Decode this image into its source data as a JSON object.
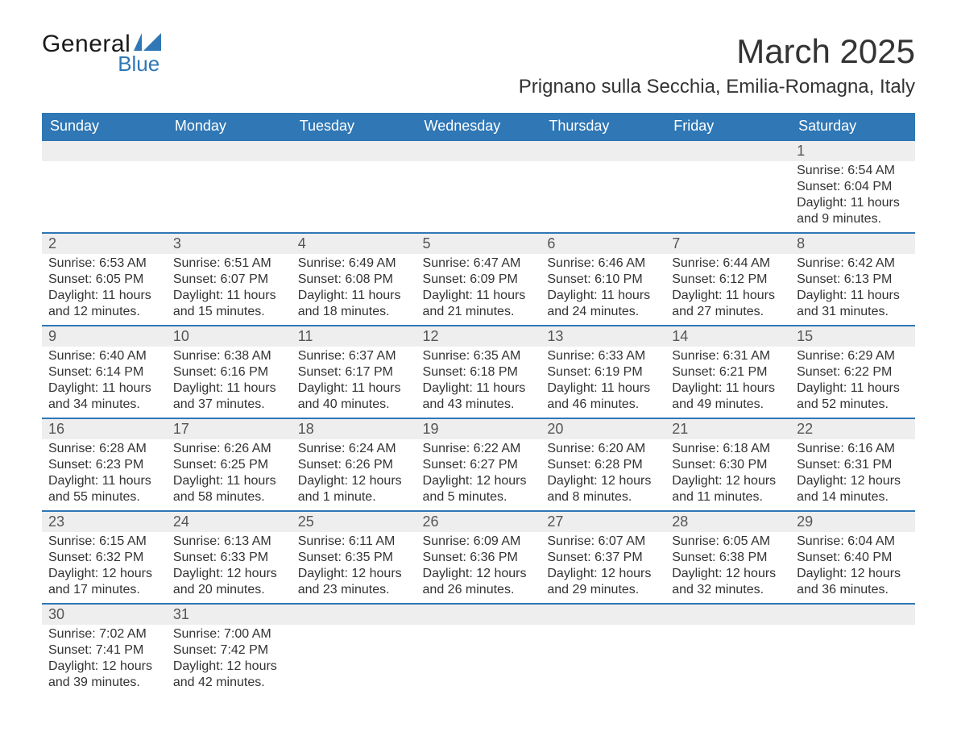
{
  "brand": {
    "word1": "General",
    "word2": "Blue"
  },
  "title": "March 2025",
  "location": "Prignano sulla Secchia, Emilia-Romagna, Italy",
  "colors": {
    "header_blue": "#2f77b5",
    "daynum_bg": "#eeeeee",
    "text": "#333333",
    "background": "#ffffff"
  },
  "typography": {
    "title_fontsize_pt": 32,
    "location_fontsize_pt": 18,
    "weekday_fontsize_pt": 14,
    "body_fontsize_pt": 12
  },
  "calendar": {
    "type": "table",
    "columns": [
      "Sunday",
      "Monday",
      "Tuesday",
      "Wednesday",
      "Thursday",
      "Friday",
      "Saturday"
    ],
    "weeks": [
      [
        null,
        null,
        null,
        null,
        null,
        null,
        {
          "n": "1",
          "sr": "Sunrise: 6:54 AM",
          "ss": "Sunset: 6:04 PM",
          "d1": "Daylight: 11 hours",
          "d2": "and 9 minutes."
        }
      ],
      [
        {
          "n": "2",
          "sr": "Sunrise: 6:53 AM",
          "ss": "Sunset: 6:05 PM",
          "d1": "Daylight: 11 hours",
          "d2": "and 12 minutes."
        },
        {
          "n": "3",
          "sr": "Sunrise: 6:51 AM",
          "ss": "Sunset: 6:07 PM",
          "d1": "Daylight: 11 hours",
          "d2": "and 15 minutes."
        },
        {
          "n": "4",
          "sr": "Sunrise: 6:49 AM",
          "ss": "Sunset: 6:08 PM",
          "d1": "Daylight: 11 hours",
          "d2": "and 18 minutes."
        },
        {
          "n": "5",
          "sr": "Sunrise: 6:47 AM",
          "ss": "Sunset: 6:09 PM",
          "d1": "Daylight: 11 hours",
          "d2": "and 21 minutes."
        },
        {
          "n": "6",
          "sr": "Sunrise: 6:46 AM",
          "ss": "Sunset: 6:10 PM",
          "d1": "Daylight: 11 hours",
          "d2": "and 24 minutes."
        },
        {
          "n": "7",
          "sr": "Sunrise: 6:44 AM",
          "ss": "Sunset: 6:12 PM",
          "d1": "Daylight: 11 hours",
          "d2": "and 27 minutes."
        },
        {
          "n": "8",
          "sr": "Sunrise: 6:42 AM",
          "ss": "Sunset: 6:13 PM",
          "d1": "Daylight: 11 hours",
          "d2": "and 31 minutes."
        }
      ],
      [
        {
          "n": "9",
          "sr": "Sunrise: 6:40 AM",
          "ss": "Sunset: 6:14 PM",
          "d1": "Daylight: 11 hours",
          "d2": "and 34 minutes."
        },
        {
          "n": "10",
          "sr": "Sunrise: 6:38 AM",
          "ss": "Sunset: 6:16 PM",
          "d1": "Daylight: 11 hours",
          "d2": "and 37 minutes."
        },
        {
          "n": "11",
          "sr": "Sunrise: 6:37 AM",
          "ss": "Sunset: 6:17 PM",
          "d1": "Daylight: 11 hours",
          "d2": "and 40 minutes."
        },
        {
          "n": "12",
          "sr": "Sunrise: 6:35 AM",
          "ss": "Sunset: 6:18 PM",
          "d1": "Daylight: 11 hours",
          "d2": "and 43 minutes."
        },
        {
          "n": "13",
          "sr": "Sunrise: 6:33 AM",
          "ss": "Sunset: 6:19 PM",
          "d1": "Daylight: 11 hours",
          "d2": "and 46 minutes."
        },
        {
          "n": "14",
          "sr": "Sunrise: 6:31 AM",
          "ss": "Sunset: 6:21 PM",
          "d1": "Daylight: 11 hours",
          "d2": "and 49 minutes."
        },
        {
          "n": "15",
          "sr": "Sunrise: 6:29 AM",
          "ss": "Sunset: 6:22 PM",
          "d1": "Daylight: 11 hours",
          "d2": "and 52 minutes."
        }
      ],
      [
        {
          "n": "16",
          "sr": "Sunrise: 6:28 AM",
          "ss": "Sunset: 6:23 PM",
          "d1": "Daylight: 11 hours",
          "d2": "and 55 minutes."
        },
        {
          "n": "17",
          "sr": "Sunrise: 6:26 AM",
          "ss": "Sunset: 6:25 PM",
          "d1": "Daylight: 11 hours",
          "d2": "and 58 minutes."
        },
        {
          "n": "18",
          "sr": "Sunrise: 6:24 AM",
          "ss": "Sunset: 6:26 PM",
          "d1": "Daylight: 12 hours",
          "d2": "and 1 minute."
        },
        {
          "n": "19",
          "sr": "Sunrise: 6:22 AM",
          "ss": "Sunset: 6:27 PM",
          "d1": "Daylight: 12 hours",
          "d2": "and 5 minutes."
        },
        {
          "n": "20",
          "sr": "Sunrise: 6:20 AM",
          "ss": "Sunset: 6:28 PM",
          "d1": "Daylight: 12 hours",
          "d2": "and 8 minutes."
        },
        {
          "n": "21",
          "sr": "Sunrise: 6:18 AM",
          "ss": "Sunset: 6:30 PM",
          "d1": "Daylight: 12 hours",
          "d2": "and 11 minutes."
        },
        {
          "n": "22",
          "sr": "Sunrise: 6:16 AM",
          "ss": "Sunset: 6:31 PM",
          "d1": "Daylight: 12 hours",
          "d2": "and 14 minutes."
        }
      ],
      [
        {
          "n": "23",
          "sr": "Sunrise: 6:15 AM",
          "ss": "Sunset: 6:32 PM",
          "d1": "Daylight: 12 hours",
          "d2": "and 17 minutes."
        },
        {
          "n": "24",
          "sr": "Sunrise: 6:13 AM",
          "ss": "Sunset: 6:33 PM",
          "d1": "Daylight: 12 hours",
          "d2": "and 20 minutes."
        },
        {
          "n": "25",
          "sr": "Sunrise: 6:11 AM",
          "ss": "Sunset: 6:35 PM",
          "d1": "Daylight: 12 hours",
          "d2": "and 23 minutes."
        },
        {
          "n": "26",
          "sr": "Sunrise: 6:09 AM",
          "ss": "Sunset: 6:36 PM",
          "d1": "Daylight: 12 hours",
          "d2": "and 26 minutes."
        },
        {
          "n": "27",
          "sr": "Sunrise: 6:07 AM",
          "ss": "Sunset: 6:37 PM",
          "d1": "Daylight: 12 hours",
          "d2": "and 29 minutes."
        },
        {
          "n": "28",
          "sr": "Sunrise: 6:05 AM",
          "ss": "Sunset: 6:38 PM",
          "d1": "Daylight: 12 hours",
          "d2": "and 32 minutes."
        },
        {
          "n": "29",
          "sr": "Sunrise: 6:04 AM",
          "ss": "Sunset: 6:40 PM",
          "d1": "Daylight: 12 hours",
          "d2": "and 36 minutes."
        }
      ],
      [
        {
          "n": "30",
          "sr": "Sunrise: 7:02 AM",
          "ss": "Sunset: 7:41 PM",
          "d1": "Daylight: 12 hours",
          "d2": "and 39 minutes."
        },
        {
          "n": "31",
          "sr": "Sunrise: 7:00 AM",
          "ss": "Sunset: 7:42 PM",
          "d1": "Daylight: 12 hours",
          "d2": "and 42 minutes."
        },
        null,
        null,
        null,
        null,
        null
      ]
    ]
  }
}
